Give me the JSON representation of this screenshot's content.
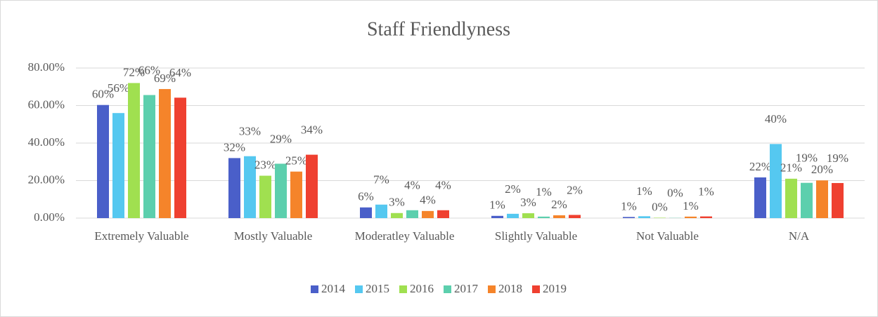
{
  "chart_data": {
    "type": "bar",
    "title": "Staff Friendlyness",
    "categories": [
      "Extremely Valuable",
      "Mostly Valuable",
      "Moderatley Valuable",
      "Slightly Valuable",
      "Not Valuable",
      "N/A"
    ],
    "series": [
      {
        "name": "2014",
        "color": "#4a5fc9",
        "values": [
          60.3,
          32,
          5.7,
          1.2,
          0.6,
          21.7
        ],
        "value_labels": [
          "60%",
          "32%",
          "6%",
          "1%",
          "1%",
          "22%"
        ]
      },
      {
        "name": "2015",
        "color": "#55c8f0",
        "values": [
          56,
          33,
          7.2,
          2.3,
          1.0,
          39.5
        ],
        "value_labels": [
          "56%",
          "33%",
          "7%",
          "2%",
          "1%",
          "40%"
        ]
      },
      {
        "name": "2016",
        "color": "#a0e050",
        "values": [
          72,
          22.6,
          2.7,
          2.6,
          0.2,
          21
        ],
        "value_labels": [
          "72%",
          "23%",
          "3%",
          "3%",
          "0%",
          "21%"
        ]
      },
      {
        "name": "2017",
        "color": "#5ccfad",
        "values": [
          65.6,
          29,
          4.2,
          0.8,
          0.1,
          18.8
        ],
        "value_labels": [
          "66%",
          "29%",
          "4%",
          "1%",
          "0%",
          "19%"
        ]
      },
      {
        "name": "2018",
        "color": "#f5842a",
        "values": [
          68.8,
          24.8,
          3.8,
          1.5,
          0.8,
          20.1
        ],
        "value_labels": [
          "69%",
          "25%",
          "4%",
          "2%",
          "1%",
          "20%"
        ]
      },
      {
        "name": "2019",
        "color": "#ef4030",
        "values": [
          64.2,
          33.8,
          4.2,
          1.7,
          0.9,
          18.7
        ],
        "value_labels": [
          "64%",
          "34%",
          "4%",
          "2%",
          "1%",
          "19%"
        ]
      }
    ],
    "ylim": [
      0,
      80
    ],
    "yticks": [
      {
        "value": 0,
        "label": "0.00%"
      },
      {
        "value": 20,
        "label": "20.00%"
      },
      {
        "value": 40,
        "label": "40.00%"
      },
      {
        "value": 60,
        "label": "60.00%"
      },
      {
        "value": 80,
        "label": "80.00%"
      }
    ],
    "grid": true,
    "legend": "bottom"
  }
}
